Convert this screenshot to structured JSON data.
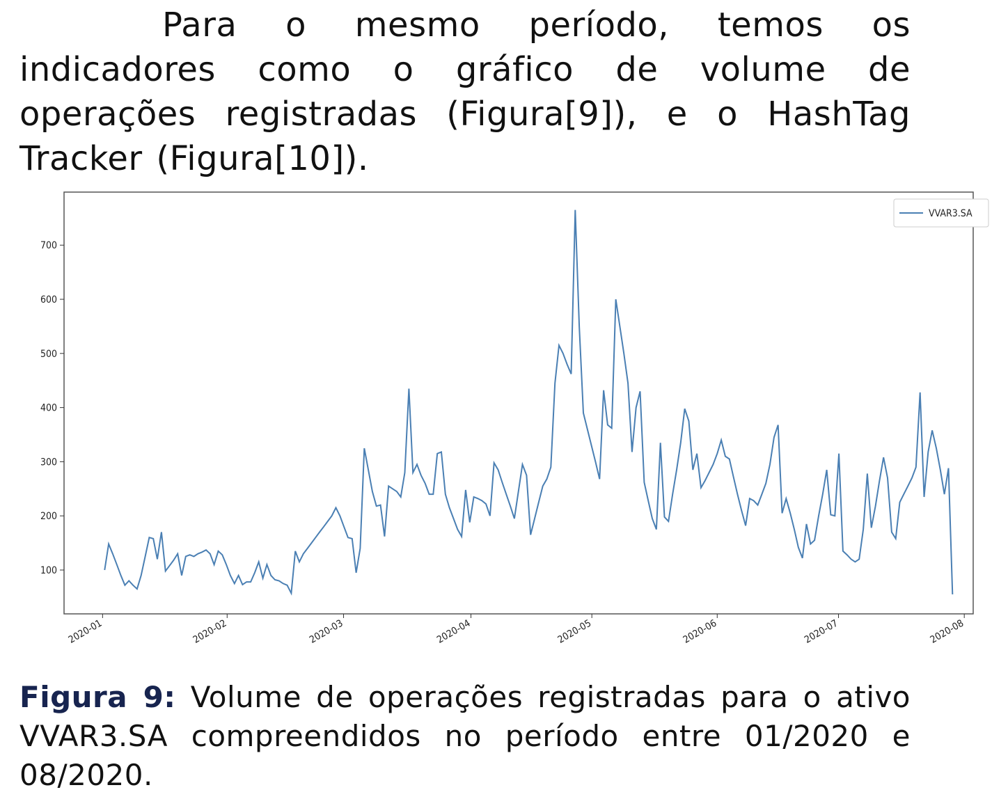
{
  "paragraph": "Para o mesmo período, temos os indicadores como o gráfico de volume de operações registradas (Figura[9]), e o HashTag Tracker (Figura[10]).",
  "chart_data": {
    "type": "line",
    "series": [
      {
        "name": "VVAR3.SA",
        "color": "#4a7fb3",
        "values": [
          100,
          148,
          130,
          110,
          90,
          72,
          80,
          72,
          65,
          90,
          125,
          160,
          158,
          120,
          170,
          98,
          108,
          118,
          130,
          90,
          125,
          128,
          125,
          130,
          133,
          137,
          130,
          110,
          135,
          128,
          110,
          90,
          75,
          90,
          73,
          78,
          78,
          95,
          115,
          85,
          110,
          90,
          82,
          80,
          75,
          72,
          57,
          135,
          115,
          130,
          140,
          150,
          160,
          170,
          180,
          190,
          200,
          215,
          200,
          180,
          160,
          158,
          95,
          140,
          325,
          285,
          245,
          218,
          220,
          162,
          255,
          250,
          245,
          235,
          280,
          435,
          280,
          295,
          275,
          260,
          240,
          240,
          315,
          318,
          240,
          215,
          195,
          175,
          162,
          248,
          188,
          235,
          232,
          228,
          222,
          200,
          298,
          285,
          262,
          240,
          218,
          195,
          245,
          295,
          275,
          165,
          195,
          225,
          255,
          268,
          290,
          445,
          515,
          500,
          480,
          462,
          765,
          550,
          390,
          360,
          330,
          300,
          268,
          432,
          368,
          362,
          600,
          550,
          500,
          445,
          318,
          400,
          430,
          262,
          228,
          195,
          175,
          335,
          198,
          190,
          240,
          285,
          335,
          398,
          375,
          285,
          315,
          252,
          265,
          280,
          295,
          315,
          340,
          310,
          305,
          272,
          240,
          210,
          182,
          232,
          228,
          220,
          240,
          260,
          295,
          345,
          368,
          205,
          232,
          205,
          175,
          142,
          122,
          185,
          148,
          155,
          200,
          240,
          285,
          202,
          200,
          315,
          135,
          128,
          120,
          115,
          120,
          175,
          278,
          178,
          218,
          265,
          308,
          270,
          170,
          158,
          225,
          240,
          255,
          270,
          290,
          428,
          235,
          318,
          358,
          325,
          285,
          240,
          288,
          55
        ]
      }
    ],
    "xlim": [
      -10,
      214.1
    ],
    "xticks": [
      {
        "value": -0.5,
        "label": "2020-01"
      },
      {
        "value": 30.2,
        "label": "2020-02"
      },
      {
        "value": 58.9,
        "label": "2020-03"
      },
      {
        "value": 90.3,
        "label": "2020-04"
      },
      {
        "value": 120.1,
        "label": "2020-05"
      },
      {
        "value": 151,
        "label": "2020-06"
      },
      {
        "value": 180.9,
        "label": "2020-07"
      },
      {
        "value": 211.9,
        "label": "2020-08"
      }
    ],
    "ylim": [
      19,
      798
    ],
    "yticks": [
      100,
      200,
      300,
      400,
      500,
      600,
      700
    ],
    "legend": "upper right"
  },
  "caption": {
    "label": "Figura 9:",
    "text": "Volume de operações registradas para o ativo VVAR3.SA compreendidos no período entre 01/2020 e 08/2020."
  }
}
